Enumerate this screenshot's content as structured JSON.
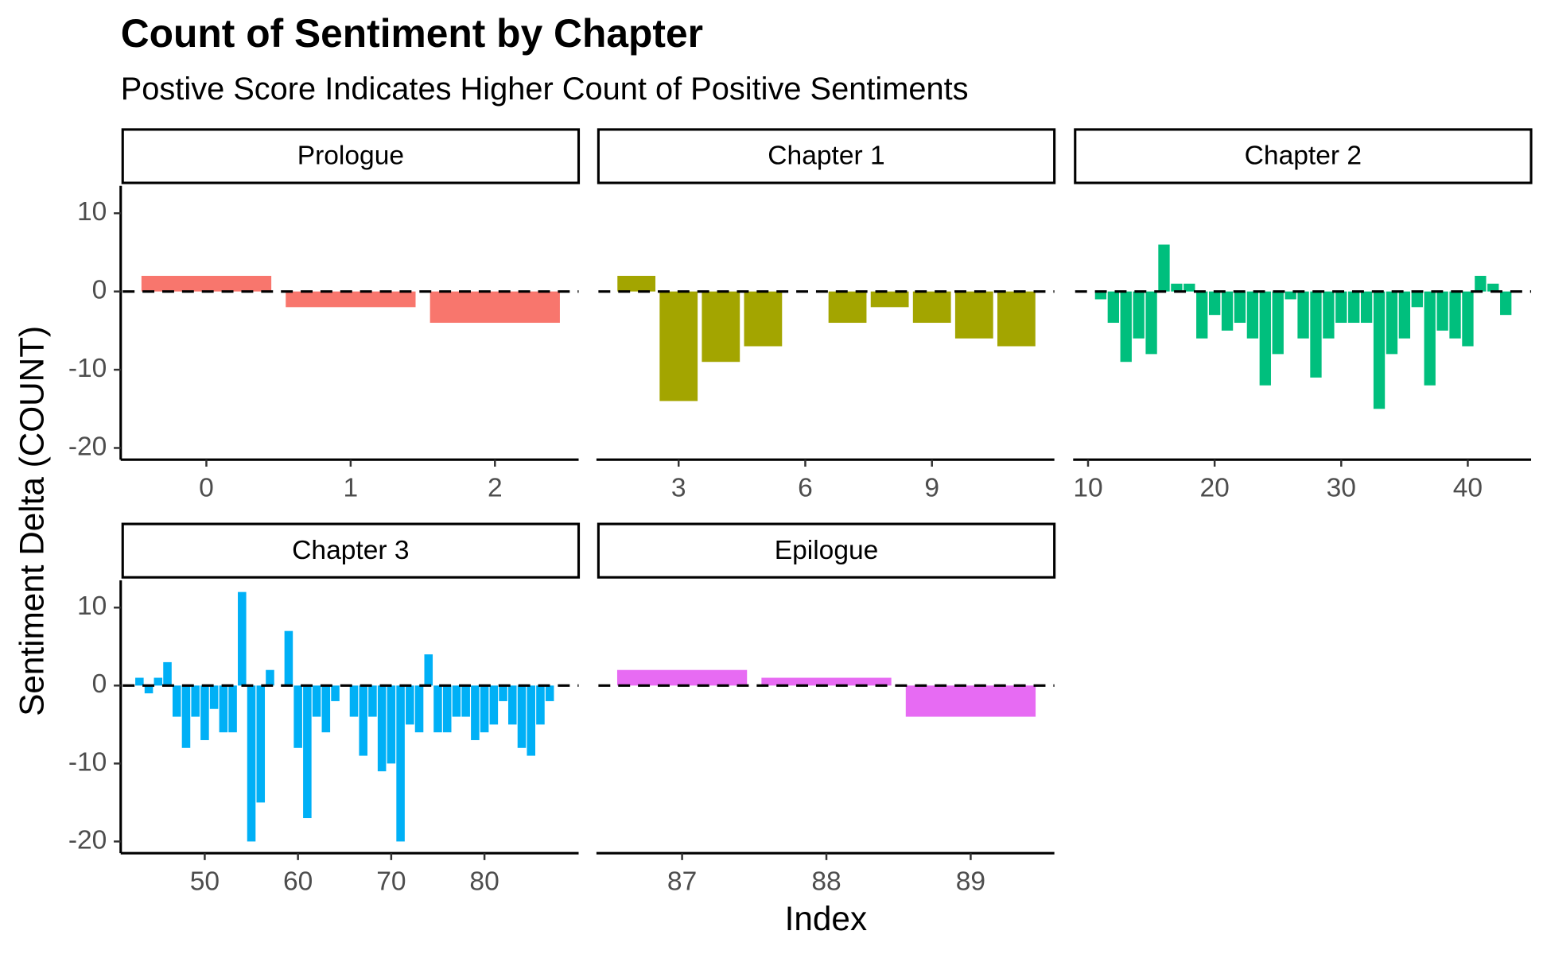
{
  "chart_data": {
    "type": "bar",
    "title": "Count of Sentiment by Chapter",
    "subtitle": "Postive Score Indicates Higher Count of Positive Sentiments",
    "x_label": "Index",
    "y_label": "Sentiment Delta (COUNT)",
    "ylim": [
      -21.5,
      13.5
    ],
    "yticks": [
      -20,
      -10,
      0,
      10
    ],
    "reference_line": 0,
    "facets": [
      {
        "name": "Prologue",
        "color": "#F8766D",
        "xlim": [
          -0.58,
          2.58
        ],
        "xticks": [
          0,
          1,
          2
        ],
        "x": [
          0,
          1,
          2
        ],
        "values": [
          2,
          -2,
          -4
        ]
      },
      {
        "name": "Chapter 1",
        "color": "#A3A500",
        "xlim": [
          1.1,
          11.9
        ],
        "xticks": [
          3,
          6,
          9
        ],
        "x": [
          2,
          3,
          4,
          5,
          7,
          8,
          9,
          10,
          11
        ],
        "values": [
          2,
          -14,
          -9,
          -7,
          -4,
          -2,
          -4,
          -6,
          -7
        ]
      },
      {
        "name": "Chapter 2",
        "color": "#00BF7D",
        "xlim": [
          8.98,
          45.0
        ],
        "xticks": [
          10,
          20,
          30,
          40
        ],
        "x": [
          11,
          12,
          13,
          14,
          15,
          16,
          17,
          18,
          19,
          20,
          21,
          22,
          23,
          24,
          25,
          26,
          27,
          28,
          29,
          30,
          31,
          32,
          33,
          34,
          35,
          36,
          37,
          38,
          39,
          40,
          41,
          42,
          43
        ],
        "values": [
          -1,
          -4,
          -9,
          -6,
          -8,
          6,
          1,
          1,
          -6,
          -3,
          -5,
          -4,
          -6,
          -12,
          -8,
          -1,
          -6,
          -11,
          -6,
          -4,
          -4,
          -4,
          -15,
          -8,
          -6,
          -2,
          -12,
          -5,
          -6,
          -7,
          2,
          1,
          -3
        ]
      },
      {
        "name": "Chapter 3",
        "color": "#00B0F6",
        "xlim": [
          41.2,
          90.1
        ],
        "xticks": [
          50,
          60,
          70,
          80
        ],
        "x": [
          43,
          44,
          45,
          46,
          47,
          48,
          49,
          50,
          51,
          52,
          53,
          54,
          55,
          56,
          57,
          59,
          60,
          61,
          62,
          63,
          64,
          66,
          67,
          68,
          69,
          70,
          71,
          72,
          73,
          74,
          75,
          76,
          77,
          78,
          79,
          80,
          81,
          82,
          83,
          84,
          85,
          86,
          87
        ],
        "values": [
          1,
          -1,
          1,
          3,
          -4,
          -8,
          -4,
          -7,
          -3,
          -6,
          -6,
          12,
          -20,
          -15,
          2,
          7,
          -8,
          -17,
          -4,
          -6,
          -2,
          -4,
          -9,
          -4,
          -11,
          -10,
          -20,
          -5,
          -6,
          4,
          -6,
          -6,
          -4,
          -4,
          -7,
          -6,
          -5,
          -2,
          -5,
          -8,
          -9,
          -5,
          -2
        ]
      },
      {
        "name": "Epilogue",
        "color": "#E76BF3",
        "xlim": [
          86.42,
          89.58
        ],
        "xticks": [
          87,
          88,
          89
        ],
        "x": [
          87,
          88,
          89
        ],
        "values": [
          2,
          1,
          -4
        ]
      }
    ]
  }
}
